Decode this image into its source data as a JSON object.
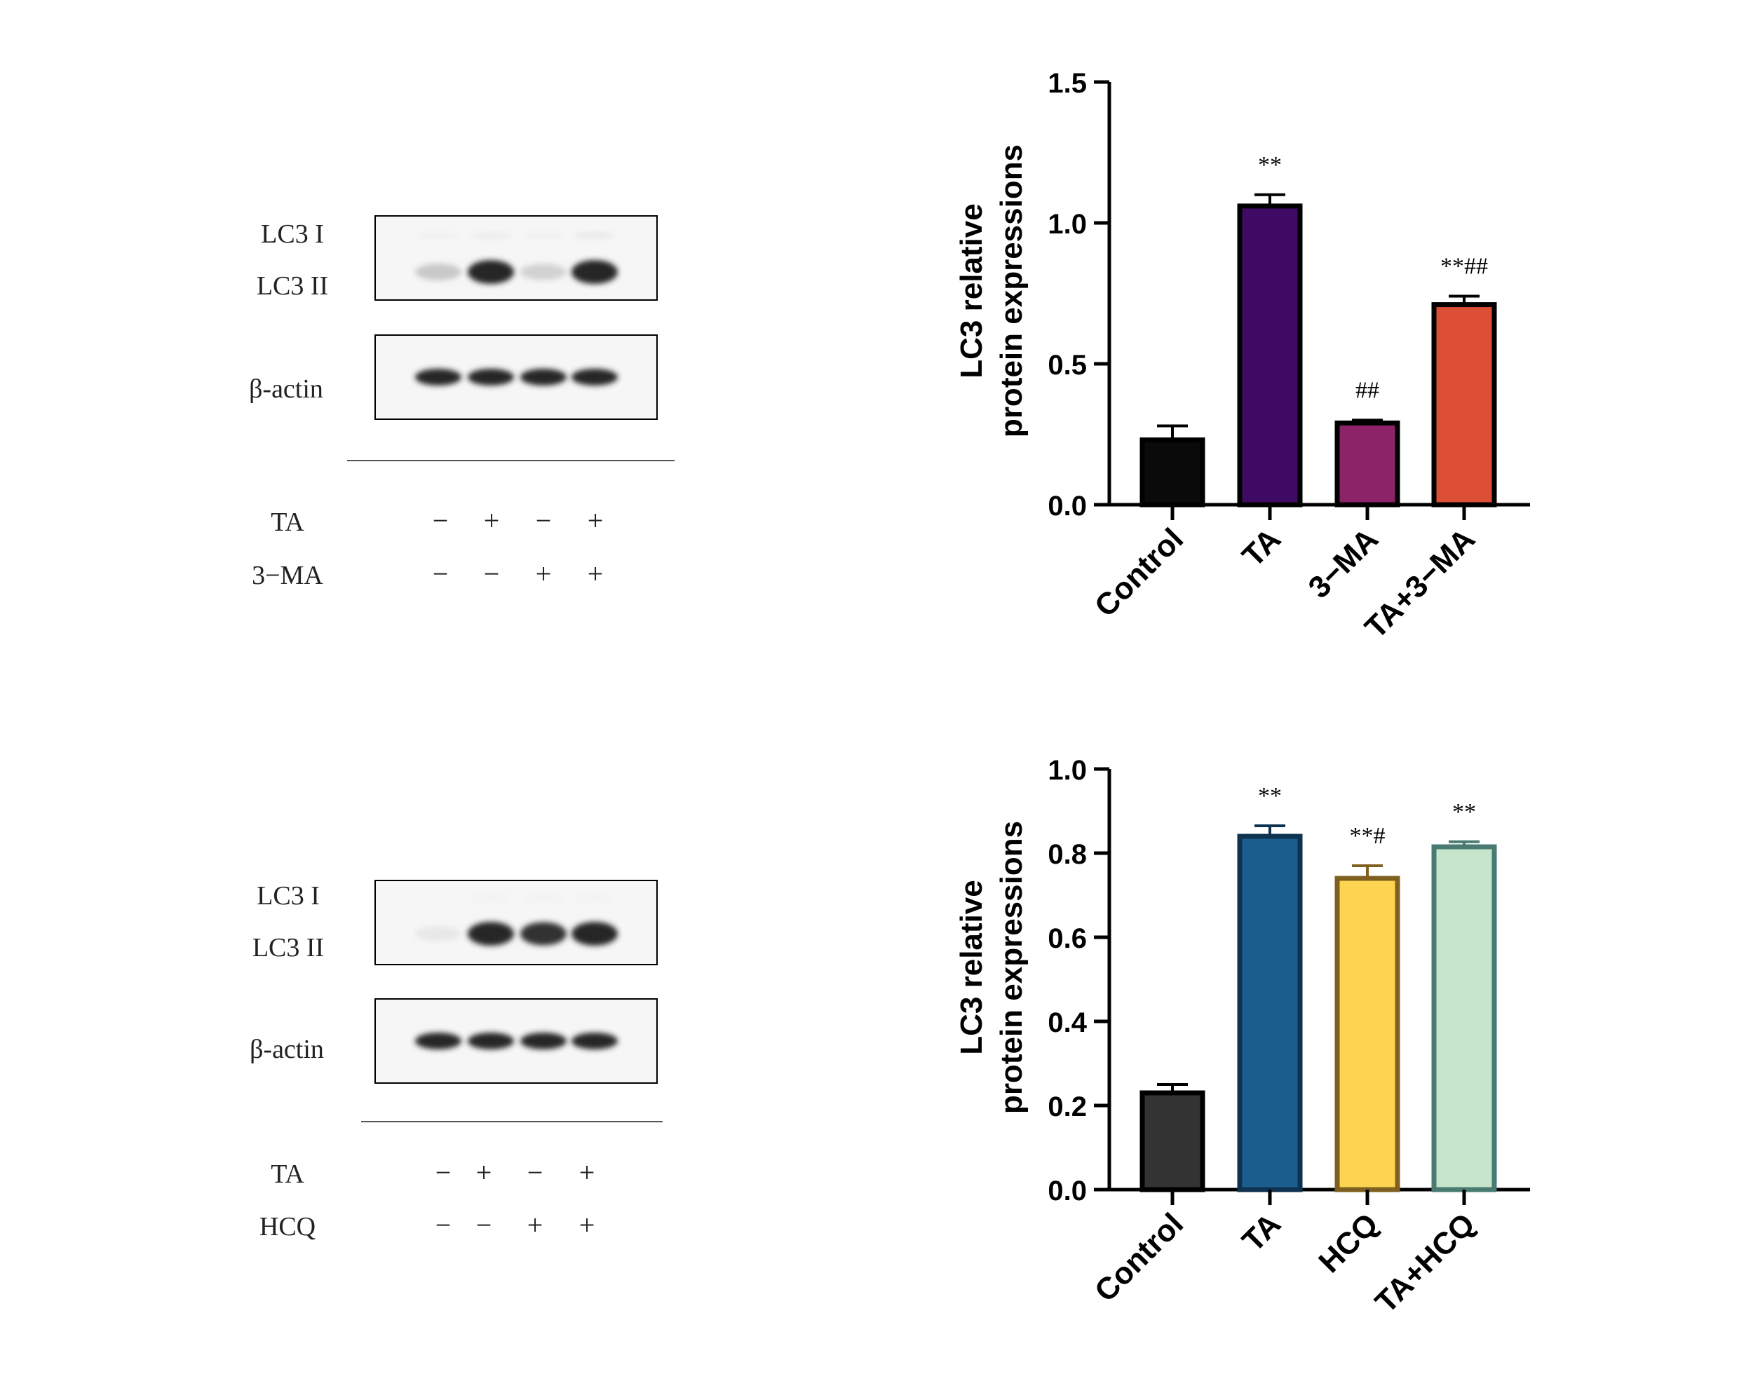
{
  "blots": [
    {
      "lc3_i_label": "LC3 I",
      "lc3_ii_label": "LC3 II",
      "actin_label": "β-actin",
      "rows": [
        {
          "label": "TA",
          "signs": [
            "−",
            "+",
            "−",
            "+"
          ]
        },
        {
          "label": "3−MA",
          "signs": [
            "−",
            "−",
            "+",
            "+"
          ]
        }
      ],
      "lc3i_intensity": [
        0.08,
        0.12,
        0.08,
        0.15
      ],
      "lc3ii_intensity": [
        0.35,
        1.0,
        0.3,
        1.0
      ],
      "actin_intensity": [
        1.0,
        1.0,
        1.0,
        1.0
      ]
    },
    {
      "lc3_i_label": "LC3 I",
      "lc3_ii_label": "LC3 II",
      "actin_label": "β-actin",
      "rows": [
        {
          "label": "TA",
          "signs": [
            "−",
            "+",
            "−",
            "+"
          ]
        },
        {
          "label": "HCQ",
          "signs": [
            "−",
            "−",
            "+",
            "+"
          ]
        }
      ],
      "lc3i_intensity": [
        0.0,
        0.06,
        0.06,
        0.06
      ],
      "lc3ii_intensity": [
        0.15,
        1.0,
        0.95,
        1.0
      ],
      "actin_intensity": [
        1.0,
        1.0,
        1.0,
        1.0
      ]
    }
  ],
  "chart_data": [
    {
      "type": "bar",
      "ylabel_line1": "LC3 relative",
      "ylabel_line2": "protein expressions",
      "categories": [
        "Control",
        "TA",
        "3−MA",
        "TA+3−MA"
      ],
      "values": [
        0.23,
        1.06,
        0.29,
        0.71
      ],
      "errors": [
        0.05,
        0.04,
        0.01,
        0.03
      ],
      "annotations": [
        "",
        "**",
        "##",
        "**##"
      ],
      "ylim": [
        0,
        1.5
      ],
      "yticks": [
        0,
        0.5,
        1.0,
        1.5
      ],
      "ytick_labels": [
        "0.0",
        "0.5",
        "1.0",
        "1.5"
      ],
      "fill_colors": [
        "#0a0a0a",
        "#3f0a63",
        "#8b2366",
        "#dc4f36"
      ],
      "edge_colors": [
        "#000000",
        "#000000",
        "#000000",
        "#000000"
      ]
    },
    {
      "type": "bar",
      "ylabel_line1": "LC3 relative",
      "ylabel_line2": "protein expressions",
      "categories": [
        "Control",
        "TA",
        "HCQ",
        "TA+HCQ"
      ],
      "values": [
        0.23,
        0.84,
        0.74,
        0.815
      ],
      "errors": [
        0.02,
        0.025,
        0.03,
        0.012
      ],
      "annotations": [
        "",
        "**",
        "**#",
        "**"
      ],
      "ylim": [
        0,
        1.0
      ],
      "yticks": [
        0,
        0.2,
        0.4,
        0.6,
        0.8,
        1.0
      ],
      "ytick_labels": [
        "0.0",
        "0.2",
        "0.4",
        "0.6",
        "0.8",
        "1.0"
      ],
      "fill_colors": [
        "#333333",
        "#1b5e8e",
        "#fdd452",
        "#c6e5cb"
      ],
      "edge_colors": [
        "#000000",
        "#0d3350",
        "#7f6020",
        "#4a7b72"
      ]
    }
  ]
}
